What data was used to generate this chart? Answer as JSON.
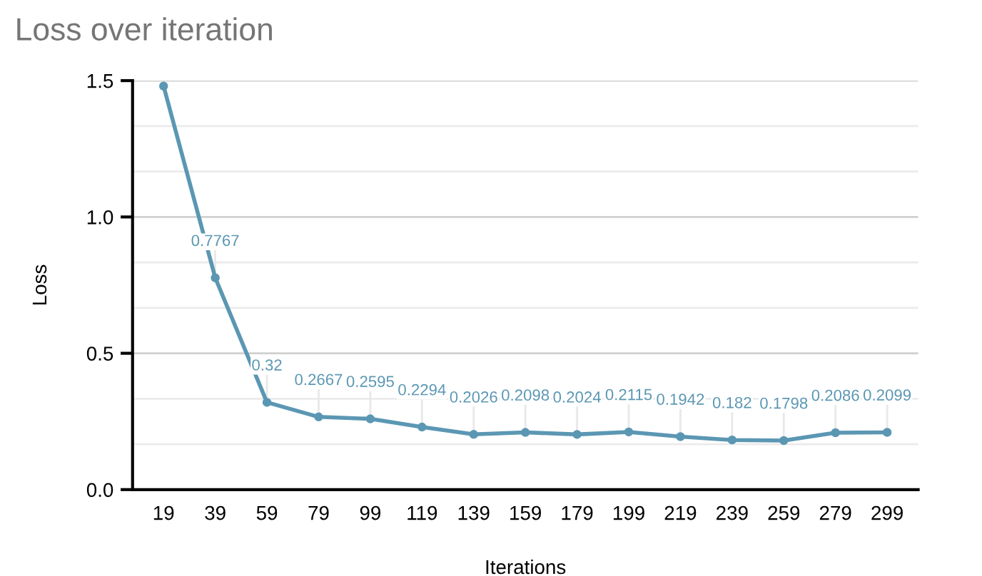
{
  "chart_data": {
    "type": "line",
    "title": "Loss over iteration",
    "xlabel": "Iterations",
    "ylabel": "Loss",
    "categories": [
      "19",
      "39",
      "59",
      "79",
      "99",
      "119",
      "139",
      "159",
      "179",
      "199",
      "219",
      "239",
      "259",
      "279",
      "299"
    ],
    "series": [
      {
        "color": "#5b97b3",
        "values": [
          1.48,
          0.7767,
          0.32,
          0.2667,
          0.2595,
          0.2294,
          0.2026,
          0.2098,
          0.2024,
          0.2115,
          0.1942,
          0.182,
          0.1798,
          0.2086,
          0.2099
        ],
        "value_labels": [
          null,
          "0.7767",
          "0.32",
          "0.2667",
          "0.2595",
          "0.2294",
          "0.2026",
          "0.2098",
          "0.2024",
          "0.2115",
          "0.1942",
          "0.182",
          "0.1798",
          "0.2086",
          "0.2099"
        ]
      }
    ],
    "ylim": [
      0,
      1.5
    ],
    "yticks": [
      {
        "value": 0,
        "label": "0.0"
      },
      {
        "value": 0.5,
        "label": "0.5"
      },
      {
        "value": 1,
        "label": "1.0"
      },
      {
        "value": 1.5,
        "label": "1.5"
      }
    ],
    "grid": "y",
    "legend": false,
    "marker": "circle",
    "line_style": "solid"
  }
}
